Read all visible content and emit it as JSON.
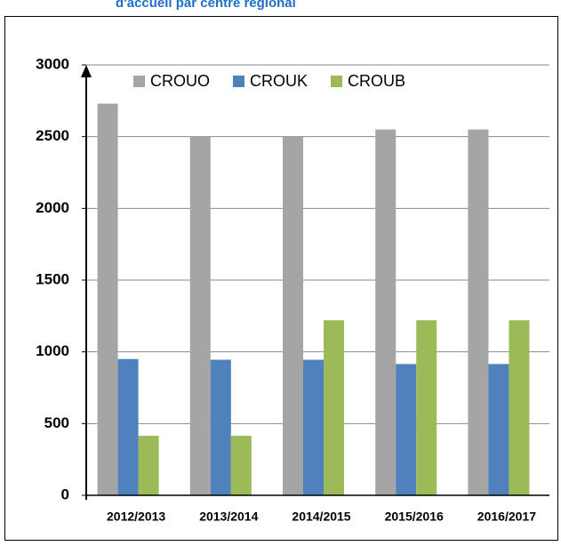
{
  "chart_data": {
    "type": "bar",
    "title": "d'accueil  par centre   régional",
    "categories": [
      "2012/2013",
      "2013/2014",
      "2014/2015",
      "2015/2016",
      "2016/2017"
    ],
    "series": [
      {
        "name": "CROUO",
        "color": "#a5a5a5",
        "values": [
          2730,
          2500,
          2500,
          2550,
          2550
        ]
      },
      {
        "name": "CROUK",
        "color": "#4f81bd",
        "values": [
          950,
          945,
          945,
          915,
          915
        ]
      },
      {
        "name": "CROUB",
        "color": "#9bbb59",
        "values": [
          415,
          415,
          1220,
          1220,
          1220
        ]
      }
    ],
    "ylim": [
      0,
      3000
    ],
    "yticks": [
      0,
      500,
      1000,
      1500,
      2000,
      2500,
      3000
    ],
    "grid": true
  }
}
